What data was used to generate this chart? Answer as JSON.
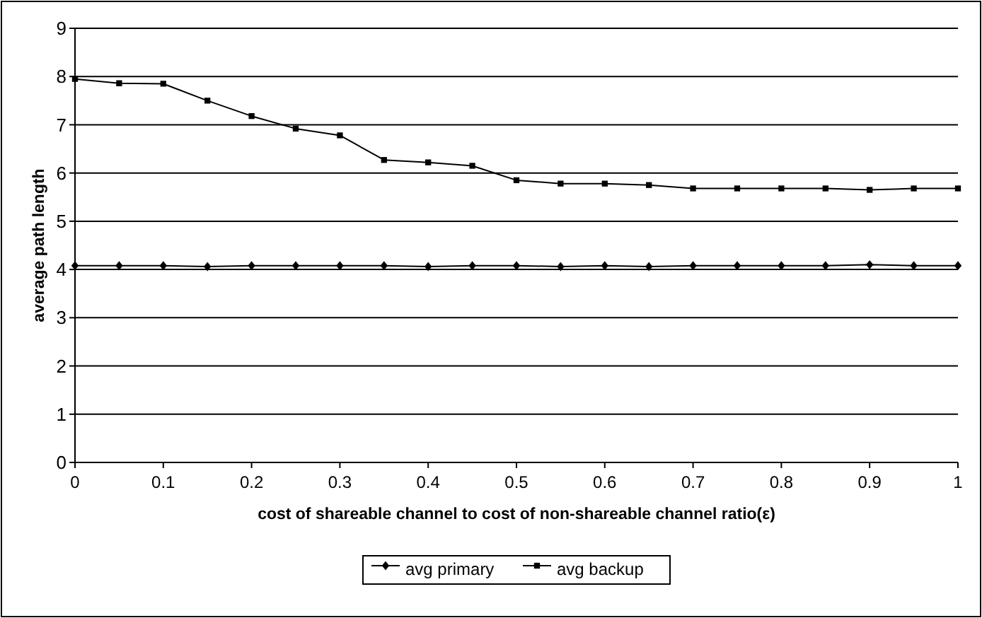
{
  "chart_data": {
    "type": "line",
    "xlabel": "cost of shareable channel to cost of non-shareable channel ratio(ε)",
    "ylabel": "average path length",
    "x": [
      0,
      0.05,
      0.1,
      0.15,
      0.2,
      0.25,
      0.3,
      0.35,
      0.4,
      0.45,
      0.5,
      0.55,
      0.6,
      0.65,
      0.7,
      0.75,
      0.8,
      0.85,
      0.9,
      0.95,
      1
    ],
    "series": [
      {
        "name": "avg primary",
        "color": "#000000",
        "marker": "diamond",
        "values": [
          4.08,
          4.08,
          4.08,
          4.06,
          4.08,
          4.08,
          4.08,
          4.08,
          4.06,
          4.08,
          4.08,
          4.06,
          4.08,
          4.06,
          4.08,
          4.08,
          4.08,
          4.08,
          4.1,
          4.08,
          4.08
        ]
      },
      {
        "name": "avg backup",
        "color": "#000000",
        "marker": "square",
        "values": [
          7.95,
          7.86,
          7.85,
          7.5,
          7.18,
          6.92,
          6.78,
          6.27,
          6.22,
          6.15,
          5.85,
          5.78,
          5.78,
          5.75,
          5.68,
          5.68,
          5.68,
          5.68,
          5.65,
          5.68,
          5.68
        ]
      }
    ],
    "xlim": [
      0,
      1
    ],
    "xticks": [
      0,
      0.1,
      0.2,
      0.3,
      0.4,
      0.5,
      0.6,
      0.7,
      0.8,
      0.9,
      1
    ],
    "ylim": [
      0,
      9
    ],
    "yticks": [
      0,
      1,
      2,
      3,
      4,
      5,
      6,
      7,
      8,
      9
    ],
    "grid": "y",
    "legend": "bottom",
    "line_style": "solid"
  }
}
